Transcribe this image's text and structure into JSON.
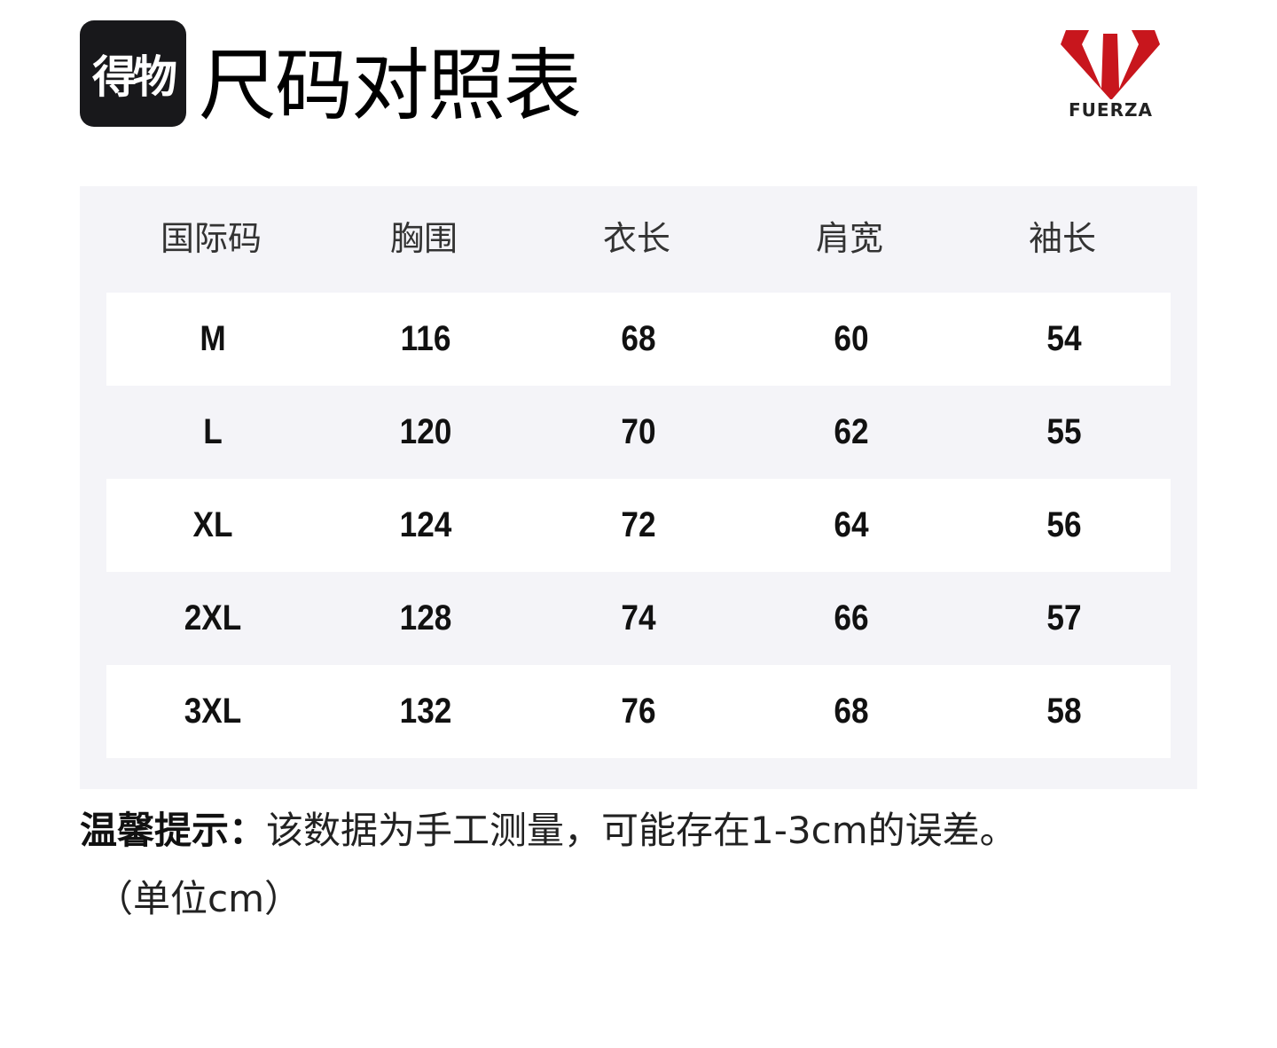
{
  "header": {
    "app_badge": "得物",
    "title": "尺码对照表",
    "brand": "FUERZA",
    "brand_color": "#c8161d"
  },
  "table": {
    "columns": [
      "国际码",
      "胸围",
      "衣长",
      "肩宽",
      "袖长"
    ],
    "rows": [
      [
        "M",
        "116",
        "68",
        "60",
        "54"
      ],
      [
        "L",
        "120",
        "70",
        "62",
        "55"
      ],
      [
        "XL",
        "124",
        "72",
        "64",
        "56"
      ],
      [
        "2XL",
        "128",
        "74",
        "66",
        "57"
      ],
      [
        "3XL",
        "132",
        "76",
        "68",
        "58"
      ]
    ]
  },
  "note": {
    "label": "温馨提示：",
    "text": "该数据为手工测量，可能存在1-3cm的误差。",
    "unit": "（单位cm）"
  }
}
